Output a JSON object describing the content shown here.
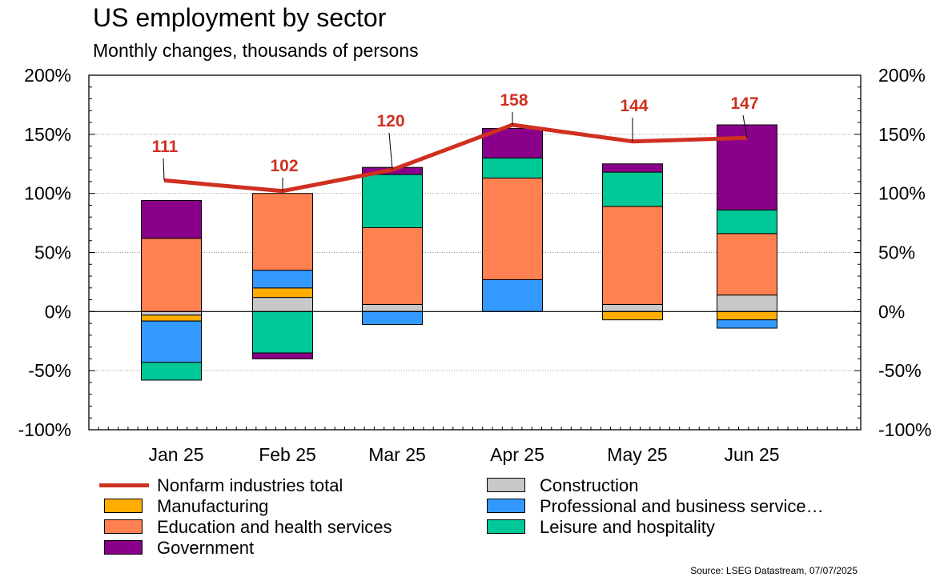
{
  "title": "US employment by sector",
  "subtitle": "Monthly changes, thousands of persons",
  "source": "Source: LSEG Datastream, 07/07/2025",
  "chart_data": {
    "type": "bar",
    "stacked": true,
    "categories": [
      "Jan 25",
      "Feb 25",
      "Mar 25",
      "Apr 25",
      "May 25",
      "Jun 25"
    ],
    "ylim": [
      -100,
      200
    ],
    "yticks": [
      -100,
      -50,
      0,
      50,
      100,
      150,
      200
    ],
    "ytick_labels": [
      "-100%",
      "-50%",
      "0%",
      "50%",
      "100%",
      "150%",
      "200%"
    ],
    "grid": true,
    "series": [
      {
        "name": "Construction",
        "color": "#c8c8c8",
        "values": [
          -3,
          12,
          6,
          0,
          6,
          14
        ]
      },
      {
        "name": "Manufacturing",
        "color": "#ffad00",
        "values": [
          -5,
          8,
          0,
          0,
          -7,
          -7
        ]
      },
      {
        "name": "Professional and business service…",
        "color": "#3399ff",
        "values": [
          -35,
          15,
          -11,
          27,
          0,
          -7
        ]
      },
      {
        "name": "Education and health services",
        "color": "#ff8050",
        "values": [
          62,
          65,
          65,
          86,
          83,
          52
        ]
      },
      {
        "name": "Leisure and hospitality",
        "color": "#00c896",
        "values": [
          -15,
          -35,
          45,
          17,
          29,
          20
        ]
      },
      {
        "name": "Government",
        "color": "#8b008b",
        "values": [
          32,
          -5,
          6,
          25,
          7,
          72
        ]
      }
    ],
    "line": {
      "name": "Nonfarm industries total",
      "color": "#d03020",
      "values": [
        111,
        102,
        120,
        158,
        144,
        147
      ],
      "labels": [
        "111",
        "102",
        "120",
        "158",
        "144",
        "147"
      ]
    }
  },
  "legend": {
    "left": [
      {
        "name": "Nonfarm industries total",
        "kind": "line",
        "color": "#d03020"
      },
      {
        "name": "Manufacturing",
        "kind": "box",
        "color": "#ffad00"
      },
      {
        "name": "Education and health services",
        "kind": "box",
        "color": "#ff8050"
      },
      {
        "name": "Government",
        "kind": "box",
        "color": "#8b008b"
      }
    ],
    "right": [
      {
        "name": "Construction",
        "kind": "box",
        "color": "#c8c8c8"
      },
      {
        "name": "Professional and business service…",
        "kind": "box",
        "color": "#3399ff"
      },
      {
        "name": "Leisure and hospitality",
        "kind": "box",
        "color": "#00c896"
      }
    ]
  }
}
